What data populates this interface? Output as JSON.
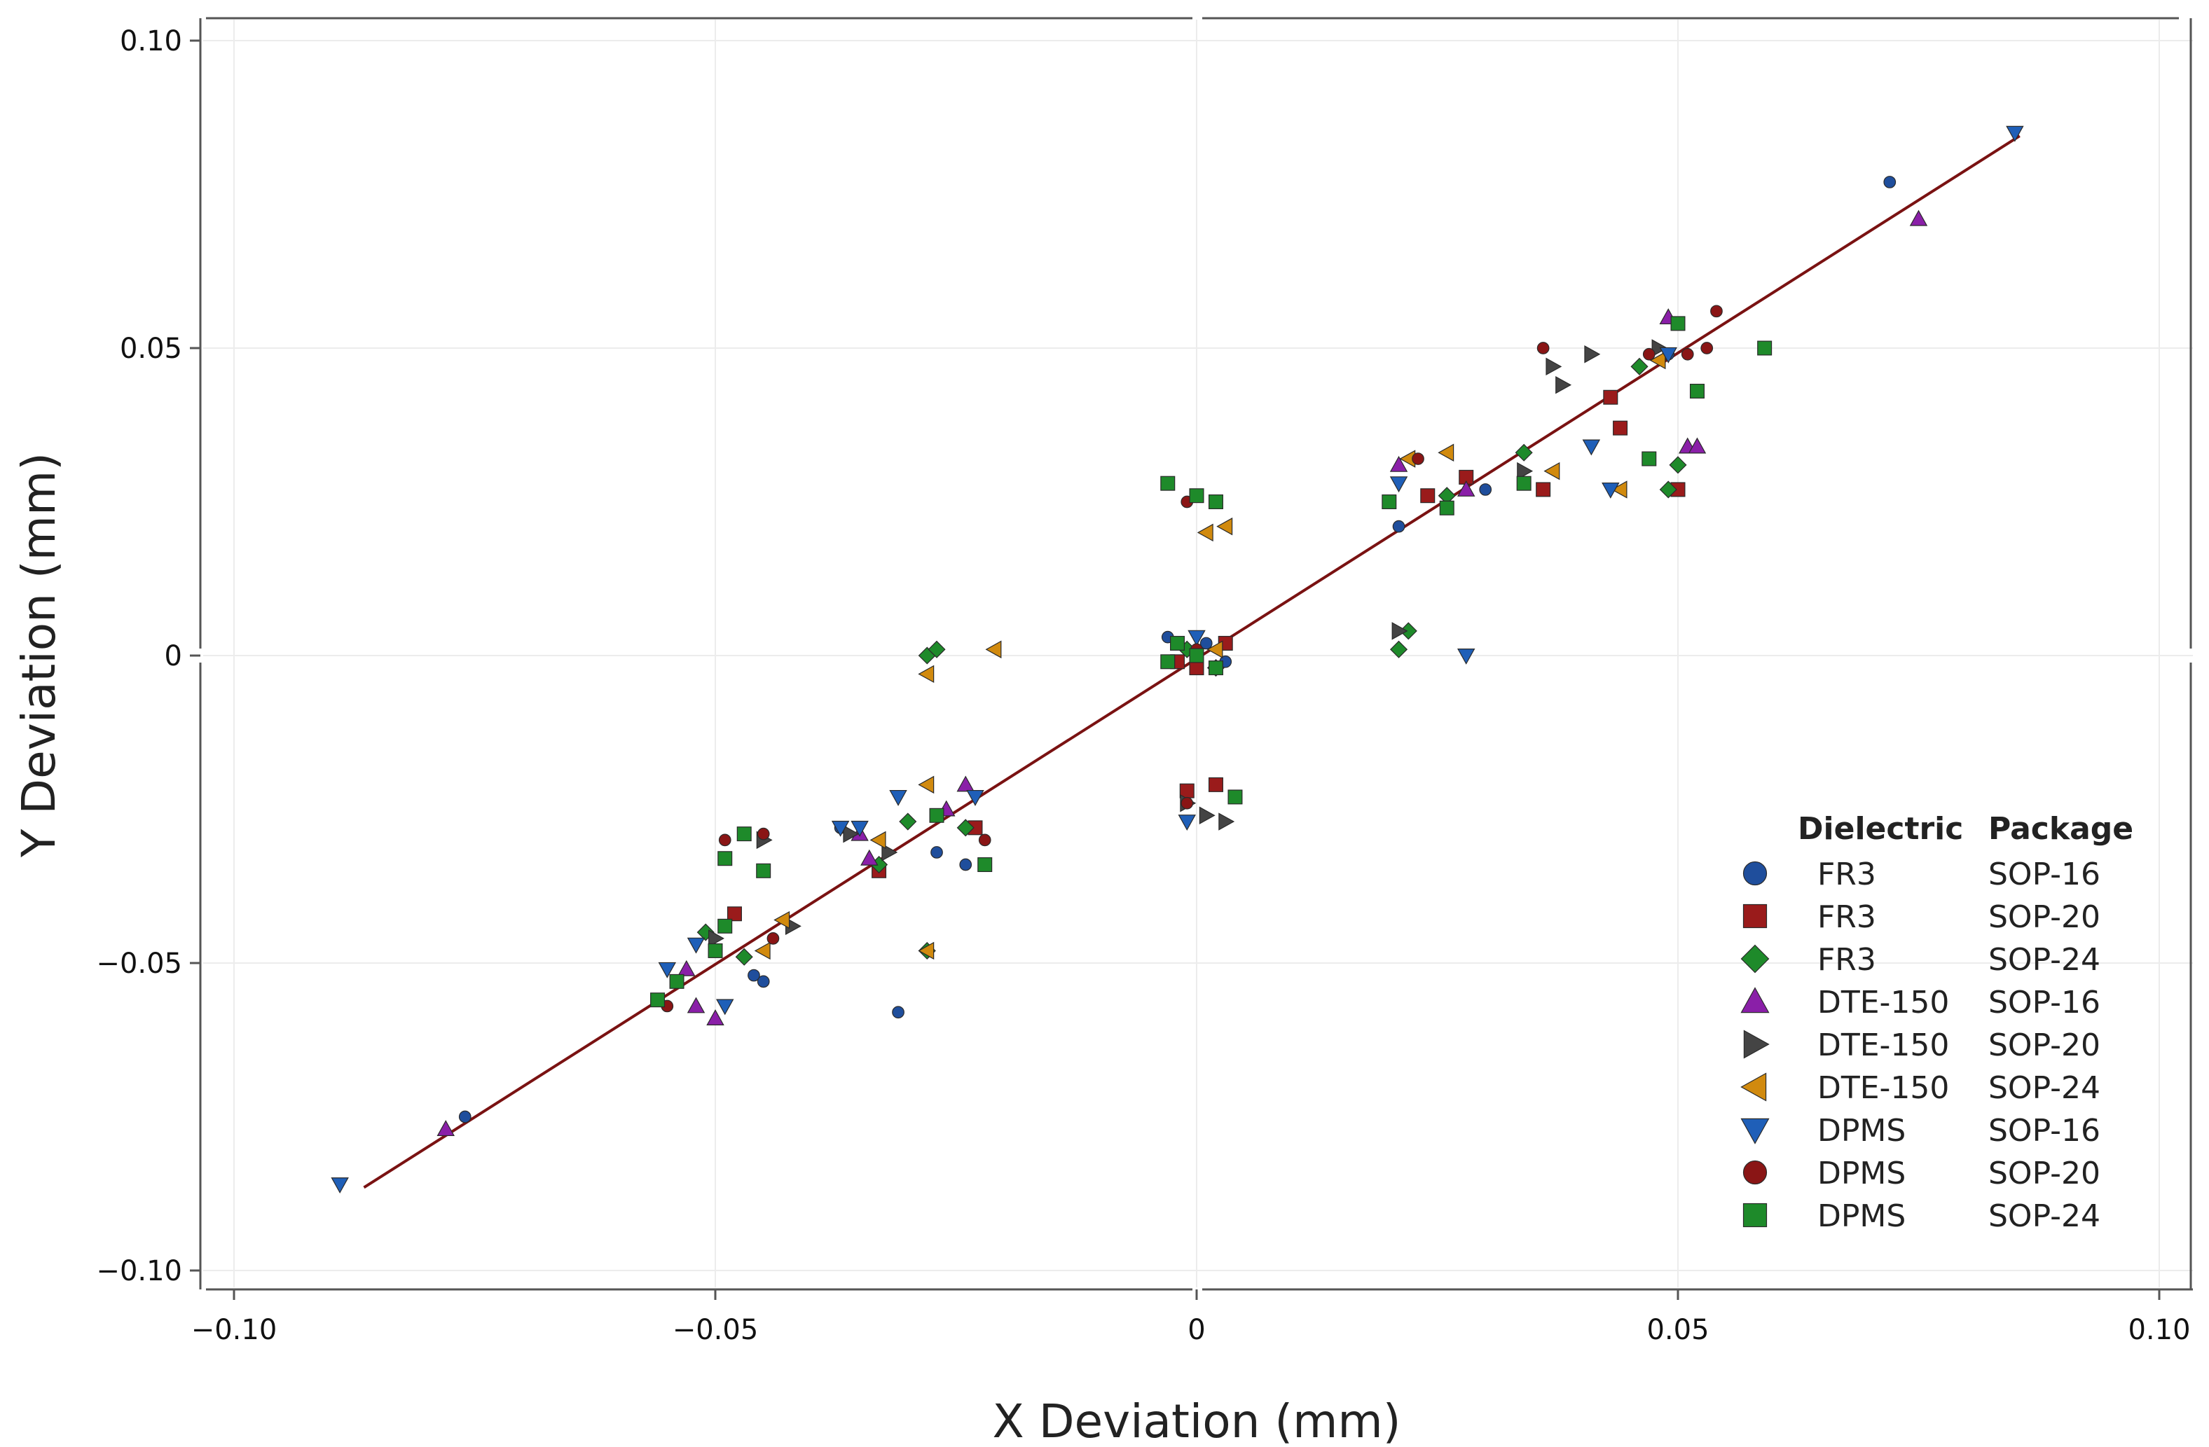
{
  "chart_data": {
    "type": "scatter",
    "title": "",
    "xlabel": "X Deviation (mm)",
    "ylabel": "Y Deviation (mm)",
    "xlim": [
      -0.103,
      0.103
    ],
    "ylim": [
      -0.103,
      0.103
    ],
    "x_ticks": [
      -0.1,
      -0.05,
      0,
      0.05,
      0.1
    ],
    "x_tick_labels": [
      "−0.10",
      "−0.05",
      "0",
      "0.05",
      "0.10"
    ],
    "y_ticks": [
      -0.1,
      -0.05,
      0,
      0.05,
      0.1
    ],
    "y_tick_labels": [
      "−0.10",
      "−0.05",
      "0",
      "0.05",
      "0.10"
    ],
    "grid": true,
    "legend_position": "bottom-right",
    "legend_headers": {
      "dielectric": "Dielectric",
      "package": "Package"
    },
    "fit_line": {
      "x": [
        -0.0865,
        0.0855
      ],
      "y": [
        -0.0865,
        0.0845
      ],
      "color": "#7a1212"
    },
    "series": [
      {
        "dielectric": "FR3",
        "package": "SOP-16",
        "marker": "circle",
        "color": "#1f4e9c",
        "x": [
          0.072,
          -0.076,
          -0.046,
          -0.045,
          -0.031,
          -0.037,
          -0.027,
          -0.024,
          0.021,
          0.03,
          0.049,
          -0.001,
          0.001,
          0.003,
          -0.003
        ],
        "y": [
          0.077,
          -0.075,
          -0.052,
          -0.053,
          -0.058,
          -0.028,
          -0.032,
          -0.034,
          0.021,
          0.027,
          0.049,
          0.001,
          0.002,
          -0.001,
          0.003
        ]
      },
      {
        "dielectric": "FR3",
        "package": "SOP-20",
        "marker": "square",
        "color": "#9a1b1b",
        "x": [
          0.05,
          0.043,
          0.044,
          0.036,
          0.028,
          0.024,
          -0.048,
          -0.033,
          -0.023,
          -0.001,
          0.002,
          0.003,
          -0.002,
          0.0
        ],
        "y": [
          0.027,
          0.042,
          0.037,
          0.027,
          0.029,
          0.026,
          -0.042,
          -0.035,
          -0.028,
          -0.022,
          -0.021,
          0.002,
          -0.001,
          -0.002
        ]
      },
      {
        "dielectric": "FR3",
        "package": "SOP-24",
        "marker": "diamond",
        "color": "#1e8a2a",
        "x": [
          -0.028,
          -0.027,
          0.021,
          0.022,
          0.046,
          0.049,
          0.05,
          -0.03,
          -0.033,
          -0.028,
          -0.024,
          -0.051,
          -0.047,
          0.026,
          0.034,
          -0.001,
          0.002
        ],
        "y": [
          0.0,
          0.001,
          0.001,
          0.004,
          0.047,
          0.027,
          0.031,
          -0.027,
          -0.034,
          -0.048,
          -0.028,
          -0.045,
          -0.049,
          0.026,
          0.033,
          0.001,
          -0.002
        ]
      },
      {
        "dielectric": "DTE-150",
        "package": "SOP-16",
        "marker": "triangle-up",
        "color": "#8a1fa8",
        "x": [
          0.075,
          -0.078,
          -0.05,
          -0.052,
          -0.053,
          -0.024,
          -0.035,
          -0.034,
          0.021,
          0.049,
          0.051,
          0.052,
          -0.026,
          0.028
        ],
        "y": [
          0.071,
          -0.077,
          -0.059,
          -0.057,
          -0.051,
          -0.021,
          -0.029,
          -0.033,
          0.031,
          0.055,
          0.034,
          0.034,
          -0.025,
          0.027
        ]
      },
      {
        "dielectric": "DTE-150",
        "package": "SOP-20",
        "marker": "triangle-right",
        "color": "#444444",
        "x": [
          0.021,
          0.037,
          0.038,
          0.041,
          0.048,
          0.001,
          0.003,
          -0.045,
          -0.042,
          -0.036,
          -0.032,
          -0.05,
          0.034,
          -0.001
        ],
        "y": [
          0.004,
          0.047,
          0.044,
          0.049,
          0.05,
          -0.026,
          -0.027,
          -0.03,
          -0.044,
          -0.029,
          -0.032,
          -0.046,
          0.03,
          -0.024
        ]
      },
      {
        "dielectric": "DTE-150",
        "package": "SOP-24",
        "marker": "triangle-left",
        "color": "#d18a0e",
        "x": [
          0.001,
          0.003,
          -0.021,
          -0.028,
          -0.028,
          0.026,
          0.022,
          0.037,
          0.044,
          0.048,
          -0.045,
          -0.043,
          -0.033,
          -0.028,
          0.002
        ],
        "y": [
          0.02,
          0.021,
          0.001,
          -0.003,
          -0.048,
          0.033,
          0.032,
          0.03,
          0.027,
          0.048,
          -0.048,
          -0.043,
          -0.03,
          -0.021,
          0.001
        ]
      },
      {
        "dielectric": "DPMS",
        "package": "SOP-16",
        "marker": "triangle-down",
        "color": "#1f5fb8",
        "x": [
          0.085,
          -0.089,
          0.028,
          -0.055,
          -0.052,
          -0.049,
          -0.037,
          -0.035,
          -0.031,
          -0.023,
          0.041,
          0.043,
          0.049,
          -0.001,
          0.0,
          0.021
        ],
        "y": [
          0.085,
          -0.086,
          0.0,
          -0.051,
          -0.047,
          -0.057,
          -0.028,
          -0.028,
          -0.023,
          -0.023,
          0.034,
          0.027,
          0.049,
          -0.027,
          0.003,
          0.028
        ]
      },
      {
        "dielectric": "DPMS",
        "package": "SOP-20",
        "marker": "circle",
        "color": "#8a1515",
        "x": [
          -0.001,
          0.0,
          -0.001,
          -0.049,
          -0.045,
          -0.044,
          -0.055,
          0.036,
          0.047,
          0.054,
          0.051,
          0.053,
          0.023,
          -0.022,
          0.0
        ],
        "y": [
          0.025,
          0.026,
          -0.024,
          -0.03,
          -0.029,
          -0.046,
          -0.057,
          0.05,
          0.049,
          0.056,
          0.049,
          0.05,
          0.032,
          -0.03,
          0.001
        ]
      },
      {
        "dielectric": "DPMS",
        "package": "SOP-24",
        "marker": "square",
        "color": "#1e8a2a",
        "x": [
          -0.003,
          0.0,
          0.002,
          0.004,
          0.059,
          0.05,
          0.047,
          0.052,
          -0.056,
          -0.054,
          -0.049,
          -0.047,
          -0.045,
          -0.05,
          -0.049,
          0.02,
          0.026,
          0.034,
          -0.027,
          -0.022,
          0.0,
          -0.002,
          0.002,
          -0.003
        ],
        "y": [
          0.028,
          0.026,
          0.025,
          -0.023,
          0.05,
          0.054,
          0.032,
          0.043,
          -0.056,
          -0.053,
          -0.033,
          -0.029,
          -0.035,
          -0.048,
          -0.044,
          0.025,
          0.024,
          0.028,
          -0.026,
          -0.034,
          0.0,
          0.002,
          -0.002,
          -0.001
        ]
      }
    ]
  }
}
